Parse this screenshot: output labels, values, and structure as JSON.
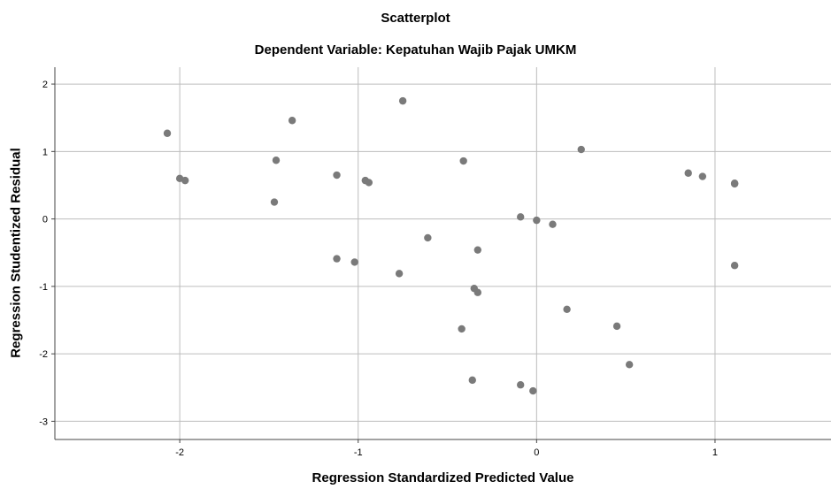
{
  "chart_data": {
    "type": "scatter",
    "title": "Scatterplot",
    "subtitle": "Dependent Variable: Kepatuhan Wajib Pajak UMKM",
    "xlabel": "Regression Standardized Predicted Value",
    "ylabel": "Regression Studentized Residual",
    "xlim": [
      -2.7,
      1.65
    ],
    "ylim": [
      -3.27,
      2.25
    ],
    "xticks": [
      -2,
      -1,
      0,
      1
    ],
    "yticks": [
      -3,
      -2,
      -1,
      0,
      1,
      2
    ],
    "grid": true,
    "marker_color": "#7a7a7a",
    "points": [
      {
        "x": -2.07,
        "y": 1.27
      },
      {
        "x": -2.0,
        "y": 0.6
      },
      {
        "x": -1.97,
        "y": 0.57
      },
      {
        "x": -1.46,
        "y": 0.87
      },
      {
        "x": -1.47,
        "y": 0.25
      },
      {
        "x": -1.37,
        "y": 1.46
      },
      {
        "x": -1.12,
        "y": 0.65
      },
      {
        "x": -1.12,
        "y": -0.59
      },
      {
        "x": -1.02,
        "y": -0.64
      },
      {
        "x": -0.96,
        "y": 0.57
      },
      {
        "x": -0.94,
        "y": 0.54
      },
      {
        "x": -0.77,
        "y": -0.81
      },
      {
        "x": -0.75,
        "y": 1.75
      },
      {
        "x": -0.61,
        "y": -0.28
      },
      {
        "x": -0.41,
        "y": 0.86
      },
      {
        "x": -0.42,
        "y": -1.63
      },
      {
        "x": -0.35,
        "y": -1.03
      },
      {
        "x": -0.33,
        "y": -1.09
      },
      {
        "x": -0.33,
        "y": -0.46
      },
      {
        "x": -0.36,
        "y": -2.39
      },
      {
        "x": -0.09,
        "y": 0.03
      },
      {
        "x": -0.09,
        "y": -2.46
      },
      {
        "x": -0.02,
        "y": -2.55
      },
      {
        "x": 0.0,
        "y": -0.02
      },
      {
        "x": 0.09,
        "y": -0.08
      },
      {
        "x": 0.17,
        "y": -1.34
      },
      {
        "x": 0.25,
        "y": 1.03
      },
      {
        "x": 0.45,
        "y": -1.59
      },
      {
        "x": 0.52,
        "y": -2.16
      },
      {
        "x": 0.85,
        "y": 0.68
      },
      {
        "x": 0.93,
        "y": 0.63
      },
      {
        "x": 1.11,
        "y": 0.52
      },
      {
        "x": 1.11,
        "y": 0.53
      },
      {
        "x": 1.11,
        "y": -0.69
      }
    ]
  }
}
